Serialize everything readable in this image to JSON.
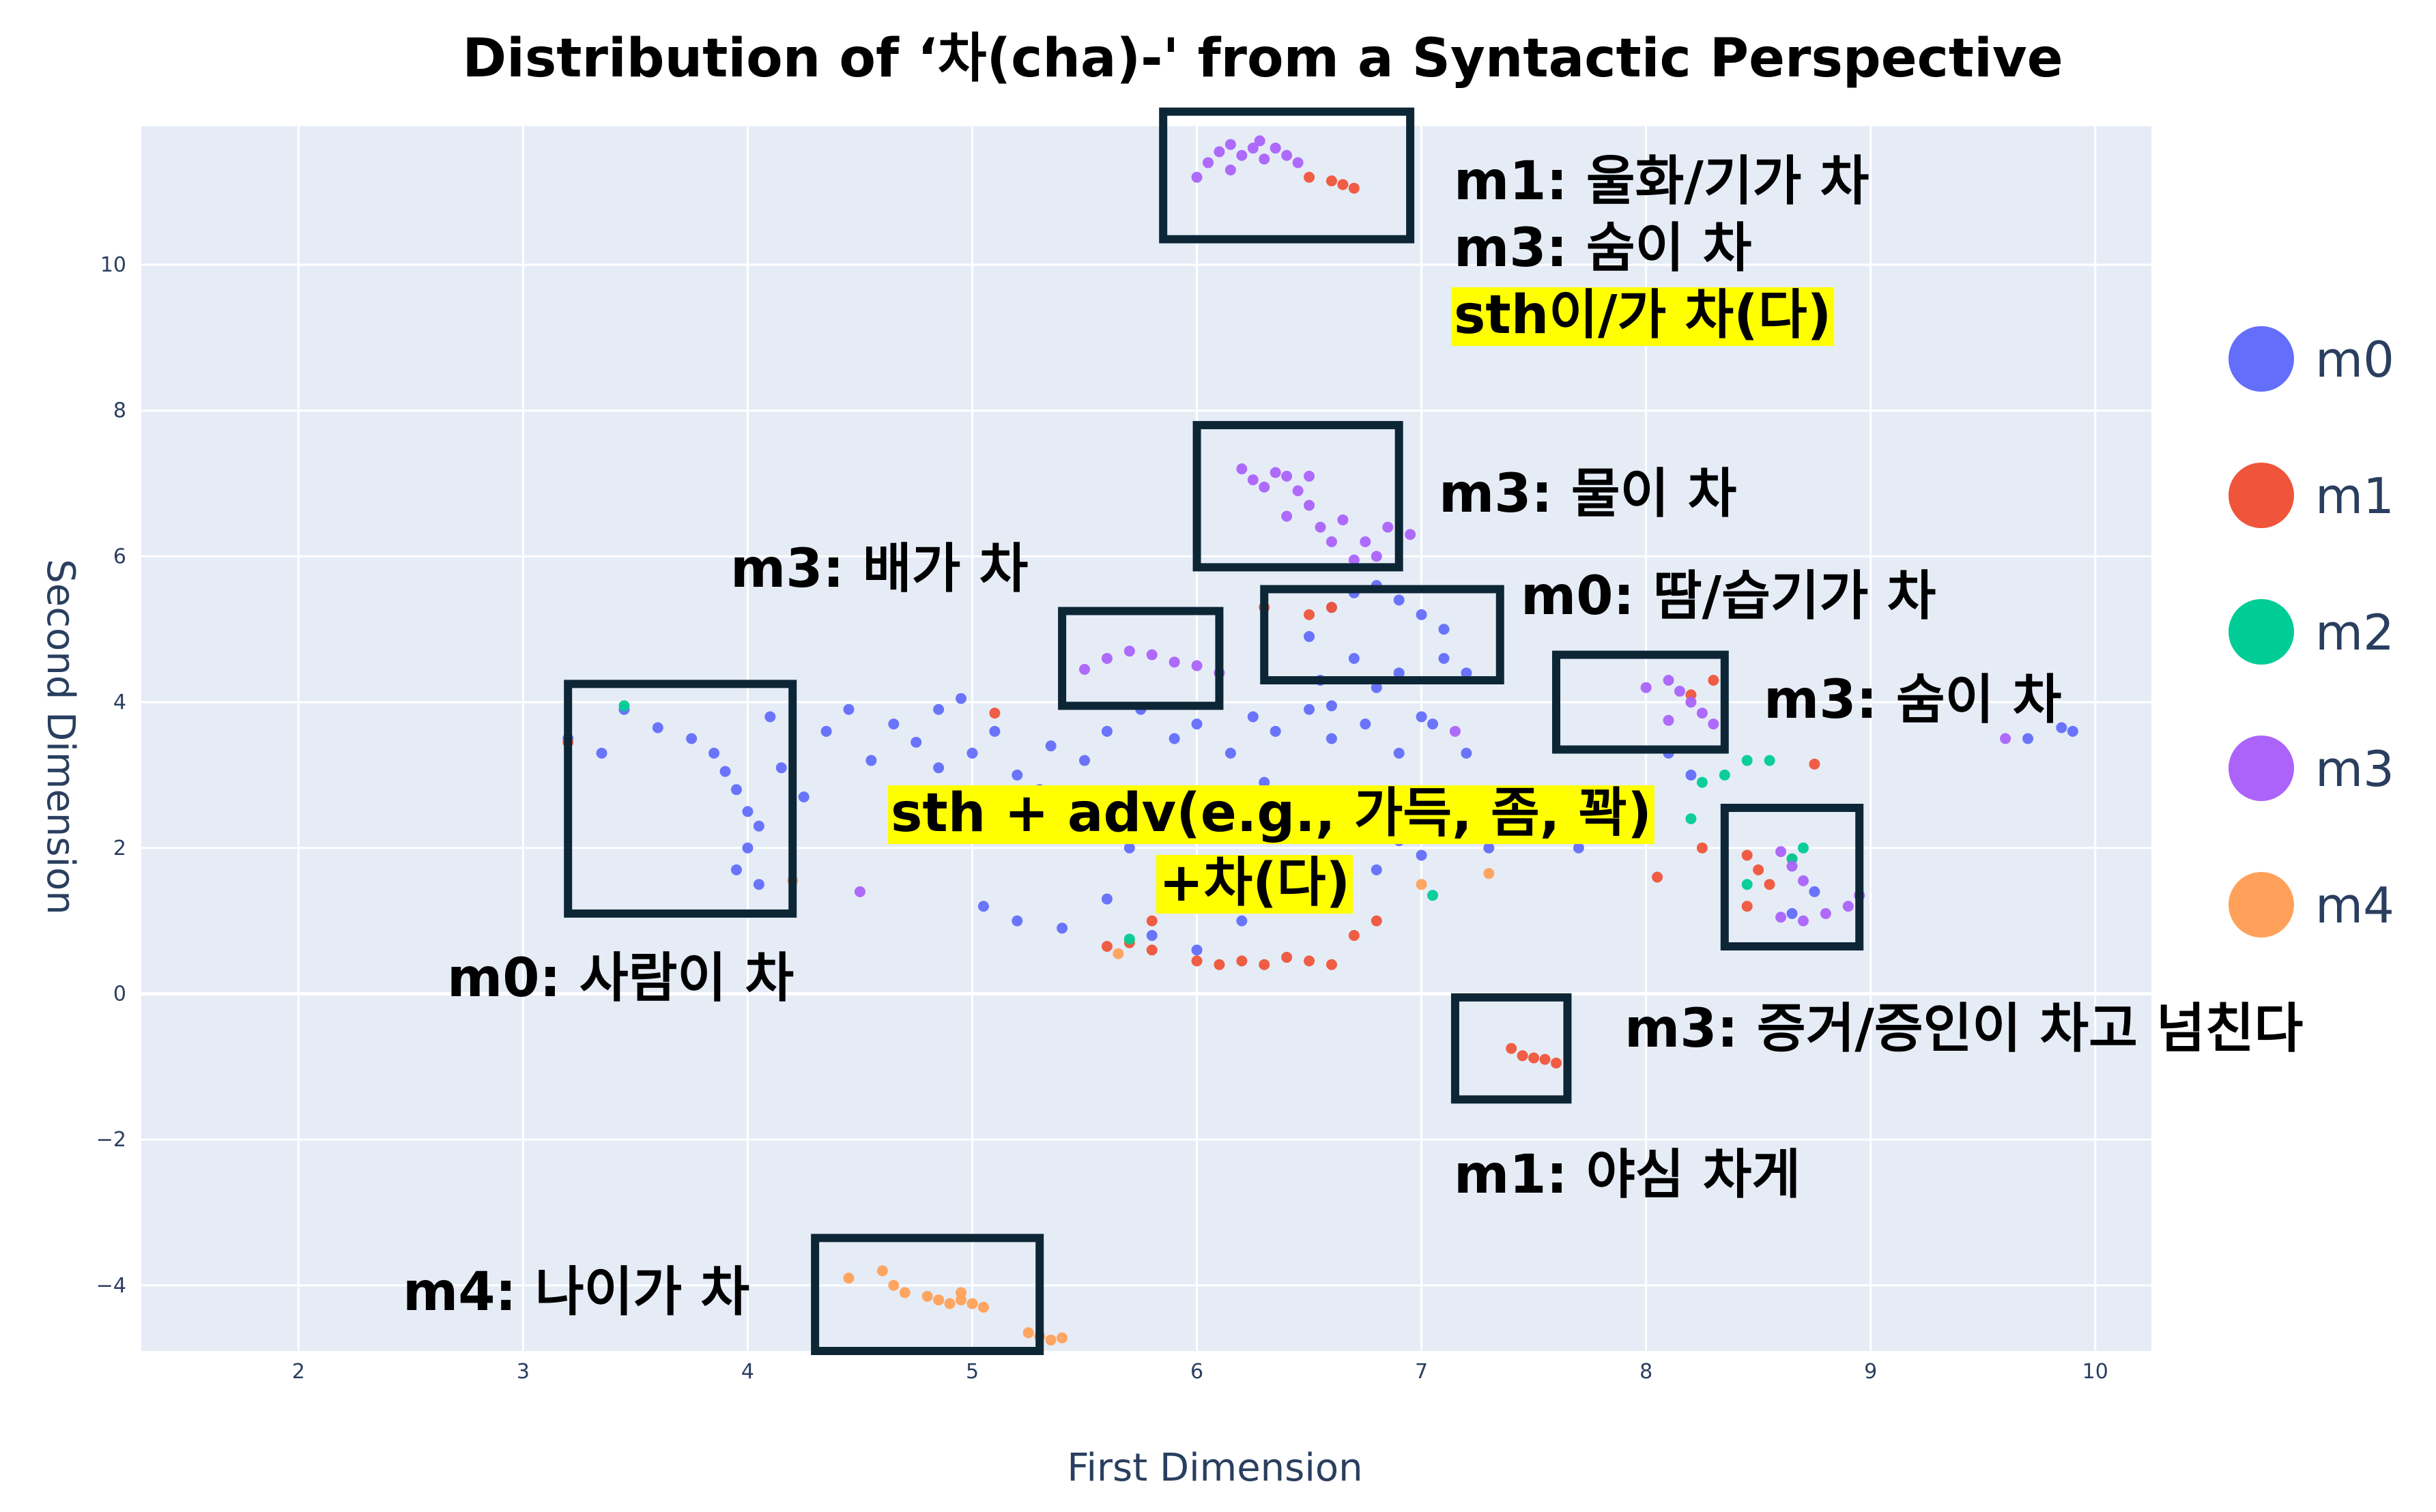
{
  "chart_data": {
    "type": "scatter",
    "title": "Distribution of ‘차(cha)-' from a Syntactic Perspective",
    "xlabel": "First Dimension",
    "ylabel": "Second Dimension",
    "xlim": [
      1.3,
      10.25
    ],
    "ylim": [
      -4.9,
      11.9
    ],
    "xticks": [
      2,
      3,
      4,
      5,
      6,
      7,
      8,
      9,
      10
    ],
    "yticks": [
      -4,
      -2,
      0,
      2,
      4,
      6,
      8,
      10
    ],
    "ytick_labels": [
      "−4",
      "−2",
      "0",
      "2",
      "4",
      "6",
      "8",
      "10"
    ],
    "grid": true,
    "legend_position": "right",
    "series": [
      {
        "name": "m0",
        "color": "#636efa",
        "points": [
          [
            3.2,
            3.5
          ],
          [
            3.35,
            3.3
          ],
          [
            3.45,
            3.9
          ],
          [
            3.6,
            3.65
          ],
          [
            3.75,
            3.5
          ],
          [
            3.85,
            3.3
          ],
          [
            3.9,
            3.05
          ],
          [
            3.95,
            2.8
          ],
          [
            4.0,
            2.5
          ],
          [
            4.05,
            2.3
          ],
          [
            4.0,
            2.0
          ],
          [
            3.95,
            1.7
          ],
          [
            4.05,
            1.5
          ],
          [
            4.1,
            3.8
          ],
          [
            4.15,
            3.1
          ],
          [
            4.25,
            2.7
          ],
          [
            4.35,
            3.6
          ],
          [
            4.45,
            3.9
          ],
          [
            4.55,
            3.2
          ],
          [
            4.65,
            3.7
          ],
          [
            4.75,
            3.45
          ],
          [
            4.85,
            3.9
          ],
          [
            4.95,
            4.05
          ],
          [
            5.0,
            3.3
          ],
          [
            5.1,
            3.6
          ],
          [
            4.85,
            3.1
          ],
          [
            5.2,
            3.0
          ],
          [
            5.35,
            3.4
          ],
          [
            5.5,
            3.2
          ],
          [
            5.6,
            3.6
          ],
          [
            5.75,
            3.9
          ],
          [
            5.9,
            3.5
          ],
          [
            6.0,
            3.7
          ],
          [
            6.15,
            3.3
          ],
          [
            6.25,
            3.8
          ],
          [
            6.35,
            3.6
          ],
          [
            6.5,
            3.9
          ],
          [
            6.6,
            3.5
          ],
          [
            6.75,
            3.7
          ],
          [
            6.9,
            3.3
          ],
          [
            7.05,
            3.7
          ],
          [
            7.2,
            3.3
          ],
          [
            5.3,
            2.8
          ],
          [
            5.5,
            2.4
          ],
          [
            5.7,
            2.0
          ],
          [
            5.9,
            2.7
          ],
          [
            6.1,
            2.4
          ],
          [
            6.3,
            2.9
          ],
          [
            6.5,
            2.2
          ],
          [
            6.7,
            2.6
          ],
          [
            6.9,
            2.1
          ],
          [
            7.1,
            2.5
          ],
          [
            7.3,
            2.0
          ],
          [
            7.5,
            2.4
          ],
          [
            7.7,
            2.0
          ],
          [
            5.05,
            1.2
          ],
          [
            5.2,
            1.0
          ],
          [
            5.4,
            0.9
          ],
          [
            5.6,
            1.3
          ],
          [
            5.8,
            0.8
          ],
          [
            6.0,
            0.6
          ],
          [
            6.2,
            1.0
          ],
          [
            6.4,
            1.2
          ],
          [
            6.6,
            1.5
          ],
          [
            6.8,
            1.7
          ],
          [
            7.0,
            1.9
          ],
          [
            6.5,
            4.9
          ],
          [
            6.6,
            5.3
          ],
          [
            6.7,
            5.5
          ],
          [
            6.8,
            5.6
          ],
          [
            6.9,
            5.4
          ],
          [
            7.0,
            5.2
          ],
          [
            7.1,
            5.0
          ],
          [
            6.55,
            4.3
          ],
          [
            6.7,
            4.6
          ],
          [
            6.9,
            4.4
          ],
          [
            7.1,
            4.6
          ],
          [
            7.2,
            4.4
          ],
          [
            6.6,
            3.95
          ],
          [
            6.8,
            4.2
          ],
          [
            7.0,
            3.8
          ],
          [
            8.1,
            3.3
          ],
          [
            8.2,
            3.0
          ],
          [
            9.7,
            3.5
          ],
          [
            9.85,
            3.65
          ],
          [
            9.9,
            3.6
          ],
          [
            8.65,
            1.1
          ],
          [
            8.75,
            1.4
          ]
        ]
      },
      {
        "name": "m1",
        "color": "#ef553b",
        "points": [
          [
            6.5,
            11.2
          ],
          [
            6.6,
            11.15
          ],
          [
            6.65,
            11.1
          ],
          [
            6.7,
            11.05
          ],
          [
            3.2,
            3.45
          ],
          [
            5.1,
            3.85
          ],
          [
            5.6,
            0.65
          ],
          [
            5.7,
            0.7
          ],
          [
            5.8,
            0.6
          ],
          [
            6.0,
            0.45
          ],
          [
            6.1,
            0.4
          ],
          [
            6.2,
            0.45
          ],
          [
            6.3,
            0.4
          ],
          [
            6.4,
            0.5
          ],
          [
            6.5,
            0.45
          ],
          [
            6.6,
            0.4
          ],
          [
            6.7,
            0.8
          ],
          [
            6.8,
            1.0
          ],
          [
            5.8,
            1.0
          ],
          [
            6.3,
            5.3
          ],
          [
            6.5,
            5.2
          ],
          [
            6.6,
            5.3
          ],
          [
            7.4,
            -0.75
          ],
          [
            7.45,
            -0.85
          ],
          [
            7.5,
            -0.88
          ],
          [
            7.55,
            -0.9
          ],
          [
            7.6,
            -0.95
          ],
          [
            8.05,
            1.6
          ],
          [
            8.25,
            2.0
          ],
          [
            8.45,
            1.9
          ],
          [
            8.5,
            1.7
          ],
          [
            8.55,
            1.5
          ],
          [
            8.65,
            1.85
          ],
          [
            8.45,
            1.2
          ],
          [
            8.3,
            4.3
          ],
          [
            8.2,
            4.1
          ],
          [
            8.75,
            3.15
          ]
        ]
      },
      {
        "name": "m2",
        "color": "#00cc96",
        "points": [
          [
            3.45,
            3.95
          ],
          [
            5.7,
            0.75
          ],
          [
            7.05,
            1.35
          ],
          [
            8.2,
            2.4
          ],
          [
            8.25,
            2.9
          ],
          [
            8.35,
            3.0
          ],
          [
            8.45,
            3.2
          ],
          [
            8.55,
            3.2
          ],
          [
            8.45,
            1.5
          ],
          [
            8.65,
            1.85
          ],
          [
            8.7,
            2.0
          ]
        ]
      },
      {
        "name": "m3",
        "color": "#ab63fa",
        "points": [
          [
            6.05,
            11.4
          ],
          [
            6.1,
            11.55
          ],
          [
            6.15,
            11.65
          ],
          [
            6.2,
            11.5
          ],
          [
            6.25,
            11.6
          ],
          [
            6.3,
            11.45
          ],
          [
            6.35,
            11.6
          ],
          [
            6.4,
            11.5
          ],
          [
            6.45,
            11.4
          ],
          [
            6.0,
            11.2
          ],
          [
            6.15,
            11.3
          ],
          [
            6.28,
            11.7
          ],
          [
            6.2,
            7.2
          ],
          [
            6.25,
            7.05
          ],
          [
            6.3,
            6.95
          ],
          [
            6.35,
            7.15
          ],
          [
            6.4,
            7.1
          ],
          [
            6.45,
            6.9
          ],
          [
            6.5,
            6.7
          ],
          [
            6.55,
            6.4
          ],
          [
            6.6,
            6.2
          ],
          [
            6.65,
            6.5
          ],
          [
            6.7,
            5.95
          ],
          [
            6.75,
            6.2
          ],
          [
            6.8,
            6.0
          ],
          [
            6.85,
            6.4
          ],
          [
            6.95,
            6.3
          ],
          [
            6.4,
            6.55
          ],
          [
            6.5,
            7.1
          ],
          [
            5.5,
            4.45
          ],
          [
            5.6,
            4.6
          ],
          [
            5.7,
            4.7
          ],
          [
            5.8,
            4.65
          ],
          [
            5.9,
            4.55
          ],
          [
            6.0,
            4.5
          ],
          [
            6.1,
            4.4
          ],
          [
            7.15,
            3.6
          ],
          [
            8.0,
            4.2
          ],
          [
            8.1,
            4.3
          ],
          [
            8.15,
            4.15
          ],
          [
            8.2,
            4.0
          ],
          [
            8.25,
            3.85
          ],
          [
            8.3,
            3.7
          ],
          [
            8.1,
            3.75
          ],
          [
            8.6,
            1.95
          ],
          [
            8.65,
            1.75
          ],
          [
            8.7,
            1.55
          ],
          [
            8.6,
            1.05
          ],
          [
            8.7,
            1.0
          ],
          [
            8.8,
            1.1
          ],
          [
            8.9,
            1.2
          ],
          [
            8.95,
            1.35
          ],
          [
            4.5,
            1.4
          ],
          [
            9.6,
            3.5
          ]
        ]
      },
      {
        "name": "m4",
        "color": "#ffa15a",
        "points": [
          [
            4.45,
            -3.9
          ],
          [
            4.6,
            -3.8
          ],
          [
            4.65,
            -4.0
          ],
          [
            4.7,
            -4.1
          ],
          [
            4.8,
            -4.15
          ],
          [
            4.85,
            -4.2
          ],
          [
            4.9,
            -4.25
          ],
          [
            4.95,
            -4.2
          ],
          [
            5.0,
            -4.25
          ],
          [
            5.05,
            -4.3
          ],
          [
            4.95,
            -4.1
          ],
          [
            5.25,
            -4.65
          ],
          [
            5.3,
            -4.7
          ],
          [
            5.35,
            -4.75
          ],
          [
            5.4,
            -4.72
          ],
          [
            4.2,
            1.55
          ],
          [
            5.65,
            0.55
          ],
          [
            7.0,
            1.5
          ],
          [
            7.3,
            1.65
          ]
        ]
      }
    ],
    "annotations": [
      {
        "text": "m1: 울화/기가 차",
        "highlight": false
      },
      {
        "text": "m3: 숨이 차",
        "highlight": false
      },
      {
        "text": "sth이/가 차(다)",
        "highlight": true
      },
      {
        "text": "m3: 물이 차",
        "highlight": false
      },
      {
        "text": "m3: 배가 차",
        "highlight": false
      },
      {
        "text": "m0: 땀/습기가 차",
        "highlight": false
      },
      {
        "text": "m3: 숨이 차",
        "highlight": false
      },
      {
        "text": "sth + adv(e.g., 가득, 좀, 꽉)",
        "highlight": true
      },
      {
        "text": "+차(다)",
        "highlight": true
      },
      {
        "text": "m0: 사람이 차",
        "highlight": false
      },
      {
        "text": "m3: 증거/증인이 차고 넘친다",
        "highlight": false
      },
      {
        "text": "m1: 야심 차게",
        "highlight": false
      },
      {
        "text": "m4: 나이가 차",
        "highlight": false
      }
    ],
    "boxes": [
      {
        "x": [
          5.85,
          6.95
        ],
        "y": [
          10.35,
          12.1
        ]
      },
      {
        "x": [
          6.0,
          6.9
        ],
        "y": [
          5.85,
          7.8
        ]
      },
      {
        "x": [
          5.4,
          6.1
        ],
        "y": [
          3.95,
          5.25
        ]
      },
      {
        "x": [
          6.3,
          7.35
        ],
        "y": [
          4.3,
          5.55
        ]
      },
      {
        "x": [
          7.6,
          8.35
        ],
        "y": [
          3.35,
          4.65
        ]
      },
      {
        "x": [
          3.2,
          4.2
        ],
        "y": [
          1.1,
          4.25
        ]
      },
      {
        "x": [
          8.35,
          8.95
        ],
        "y": [
          0.65,
          2.55
        ]
      },
      {
        "x": [
          7.15,
          7.65
        ],
        "y": [
          -1.45,
          -0.05
        ]
      },
      {
        "x": [
          4.3,
          5.3
        ],
        "y": [
          -4.9,
          -3.35
        ]
      }
    ],
    "legend": {
      "items": [
        "m0",
        "m1",
        "m2",
        "m3",
        "m4"
      ]
    }
  }
}
